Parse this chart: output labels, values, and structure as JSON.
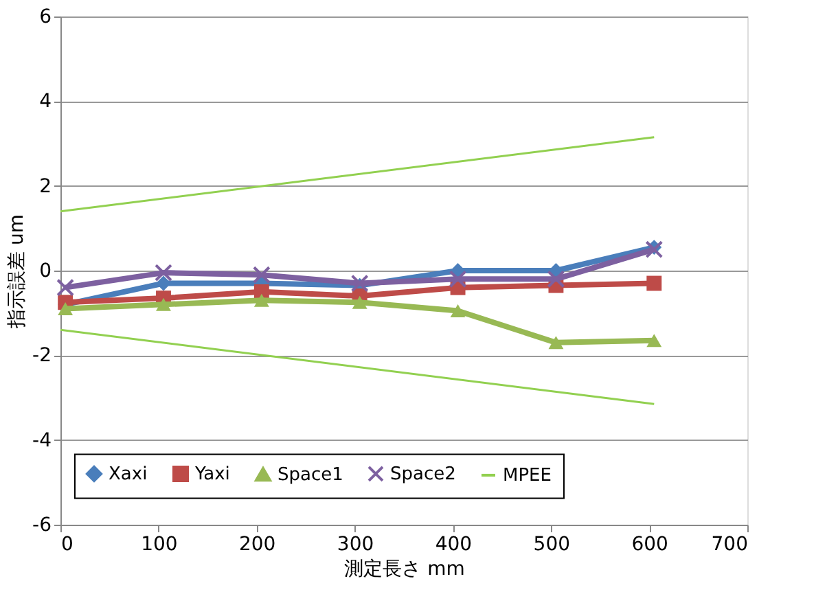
{
  "chart_data": {
    "type": "line",
    "xlabel": "測定長さ mm",
    "ylabel": "指示誤差 um",
    "xlim": [
      0,
      700
    ],
    "xticks": [
      0,
      100,
      200,
      300,
      400,
      500,
      600,
      700
    ],
    "ylim": [
      -6,
      6
    ],
    "yticks": [
      -6,
      -4,
      -2,
      0,
      2,
      4,
      6
    ],
    "grid": "y",
    "legend": "bottom",
    "line_style": "solid",
    "series": [
      {
        "name": "Xaxi",
        "color": "#4a7ebb",
        "marker": "diamond",
        "x": [
          5,
          105,
          205,
          305,
          405,
          505,
          605
        ],
        "values": [
          -0.8,
          -0.3,
          -0.3,
          -0.35,
          0,
          0,
          0.55
        ]
      },
      {
        "name": "Yaxi",
        "color": "#be4b48",
        "marker": "square",
        "x": [
          5,
          105,
          205,
          305,
          405,
          505,
          605
        ],
        "values": [
          -0.75,
          -0.65,
          -0.5,
          -0.6,
          -0.4,
          -0.35,
          -0.3
        ]
      },
      {
        "name": "Space1",
        "color": "#98b954",
        "marker": "triangle",
        "x": [
          5,
          105,
          205,
          305,
          405,
          505,
          605
        ],
        "values": [
          -0.9,
          -0.8,
          -0.7,
          -0.75,
          -0.95,
          -1.7,
          -1.65
        ]
      },
      {
        "name": "Space2",
        "color": "#7d60a0",
        "marker": "cross",
        "x": [
          5,
          105,
          205,
          305,
          405,
          505,
          605
        ],
        "values": [
          -0.4,
          -0.05,
          -0.1,
          -0.3,
          -0.2,
          -0.2,
          0.5
        ]
      },
      {
        "name": "MPEE",
        "color": "#92d050",
        "marker": "none",
        "x": [
          0,
          605
        ],
        "values": [
          1.4,
          3.15
        ]
      },
      {
        "color": "#92d050",
        "marker": "none",
        "x": [
          0,
          605
        ],
        "values": [
          -1.4,
          -3.15
        ]
      }
    ]
  }
}
